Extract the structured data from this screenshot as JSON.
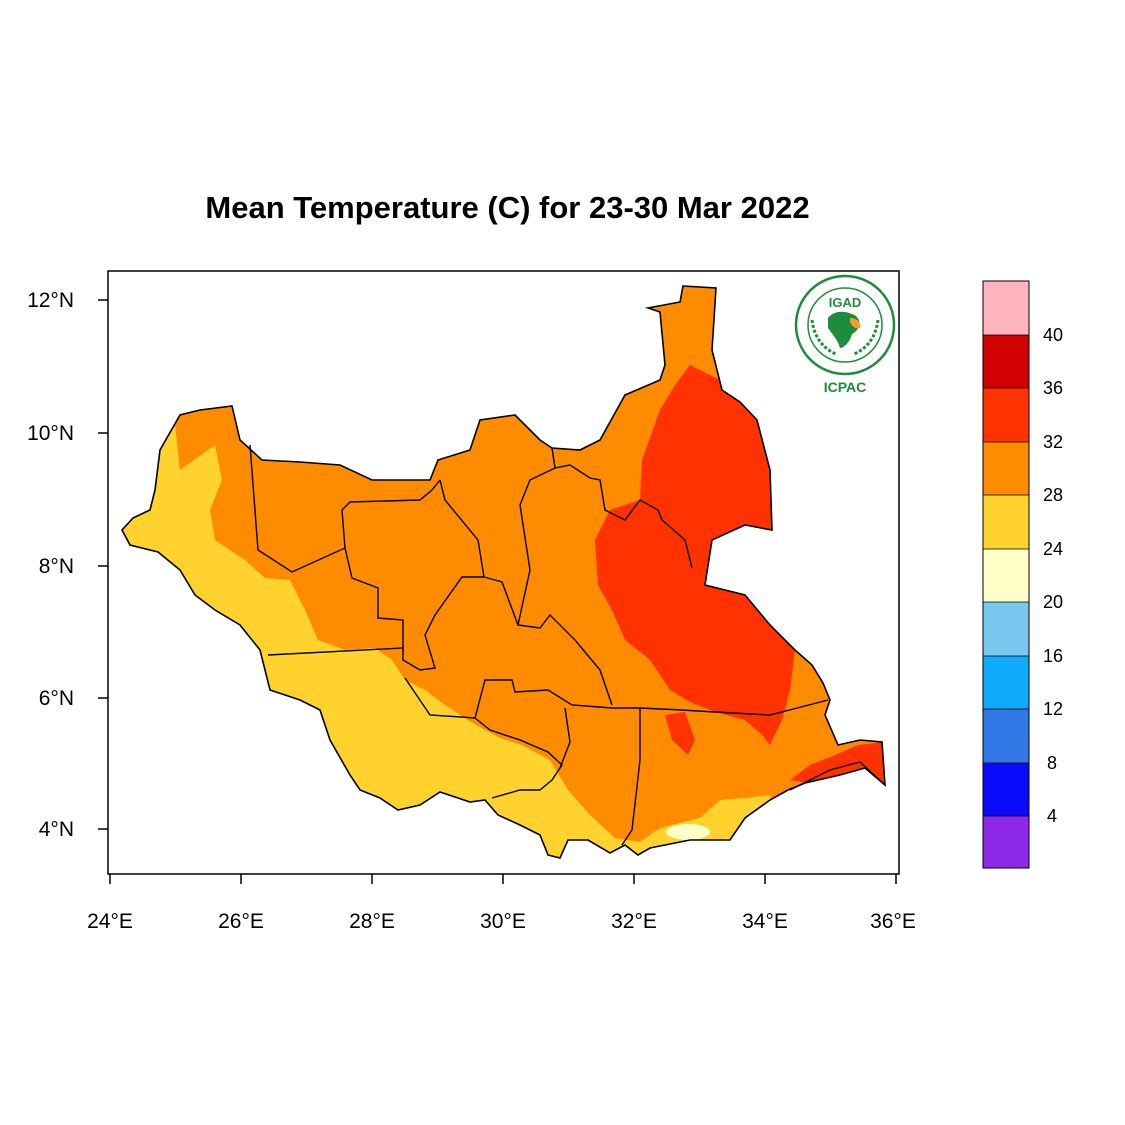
{
  "title": "Mean Temperature (C) for 23-30 Mar 2022",
  "axes": {
    "lon_ticks": [
      "24°E",
      "26°E",
      "28°E",
      "30°E",
      "32°E",
      "34°E",
      "36°E"
    ],
    "lat_ticks": [
      "12°N",
      "10°N",
      "8°N",
      "6°N",
      "4°N"
    ],
    "lon_range": [
      24,
      36
    ],
    "lat_range": [
      3.4,
      12.4
    ]
  },
  "legend": {
    "labels": [
      "40",
      "36",
      "32",
      "28",
      "24",
      "20",
      "16",
      "12",
      "8",
      "4"
    ],
    "colors": [
      "#FFB4BE",
      "#D20000",
      "#FF3200",
      "#FF8C00",
      "#FFD22D",
      "#FFFFC8",
      "#78C8F0",
      "#0FAAFA",
      "#3278E6",
      "#0A0AFA",
      "#8C28E6"
    ]
  },
  "logo": {
    "name": "IGAD",
    "subtitle": "ICPAC",
    "ring_text": "INTERGOVERNMENTAL AUTHORITY ON DEVELOPMENT",
    "colors": {
      "green": "#1E8C3C",
      "orange": "#F0A030"
    }
  },
  "zones": [
    {
      "name": "above-32",
      "color": "#FF3200"
    },
    {
      "name": "28-32",
      "color": "#FF8C00"
    },
    {
      "name": "24-28",
      "color": "#FFD22D"
    },
    {
      "name": "20-24",
      "color": "#FFFFC8"
    }
  ]
}
